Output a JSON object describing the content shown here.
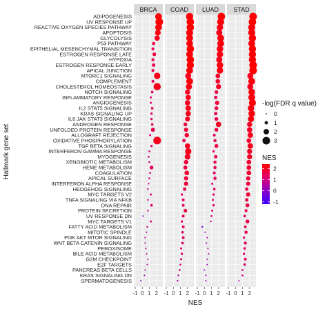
{
  "chart_data": {
    "type": "scatter",
    "xlabel": "NES",
    "ylabel": "Hallmark gene set",
    "x_ticks": [
      "-1",
      "0",
      "1",
      "2"
    ],
    "xlim": [
      -1.2,
      2.9
    ],
    "facets": [
      "BRCA",
      "COAD",
      "LUAD",
      "STAD"
    ],
    "gene_sets": [
      "ADIPOGENESIS",
      "UV RESPONSE UP",
      "REACTIVE OXYGEN SPECIES PATHWAY",
      "APOPTOSIS",
      "GLYCOLYSIS",
      "P53 PATHWAY",
      "EPITHELIAL MESENCHYMAL TRANSITION",
      "ESTROGEN RESPONSE LATE",
      "HYPOXIA",
      "ESTROGEN RESPONSE EARLY",
      "APICAL JUNCTION",
      "MTORC1 SIGNALING",
      "COMPLEMENT",
      "CHOLESTEROL HOMEOSTASIS",
      "NOTCH SIGNALING",
      "INFLAMMATORY RESPONSE",
      "ANGIOGENESIS",
      "IL2 STAT5 SIGNALING",
      "KRAS SIGNALING UP",
      "IL6 JAK STAT3 SIGNALING",
      "ANDROGEN RESPONSE",
      "UNFOLDED PROTEIN RESPONSE",
      "ALLOGRAFT REJECTION",
      "OXIDATIVE PHOSPHORYLATION",
      "TGF BETA SIGNALING",
      "INTERFERON GAMMA RESPONSE",
      "MYOGENESIS",
      "XENOBIOTIC METABOLISM",
      "HEME METABOLISM",
      "COAGULATION",
      "APICAL SURFACE",
      "INTERFERON ALPHA RESPONSE",
      "HEDGEHOG SIGNALING",
      "MYC TARGETS V2",
      "TNFA SIGNALING VIA NFKB",
      "DNA REPAIR",
      "PROTEIN SECRETION",
      "UV RESPONSE DN",
      "MYC TARGETS V1",
      "FATTY ACID METABOLISM",
      "MITOTIC SPINDLE",
      "PI3K AKT MTOR SIGNALING",
      "WNT BETA CATENIN SIGNALING",
      "PEROXISOME",
      "BILE ACID METABOLISM",
      "G2M CHECKPOINT",
      "E2F TARGETS",
      "PANCREAS BETA CELLS",
      "KRAS SIGNALING DN",
      "SPERMATOGENESIS"
    ],
    "nes": {
      "BRCA": [
        2.3,
        2.4,
        2.3,
        2.2,
        2.1,
        1.6,
        1.5,
        1.7,
        1.5,
        1.6,
        1.5,
        2.1,
        1.5,
        2.1,
        1.4,
        1.2,
        1.2,
        1.4,
        1.3,
        1.3,
        1.4,
        1.5,
        1.1,
        2.1,
        1.3,
        1.0,
        0.9,
        1.0,
        1.3,
        1.1,
        1.0,
        0.9,
        0.8,
        1.2,
        0.8,
        1.3,
        0.8,
        0.1,
        1.2,
        0.7,
        0.6,
        0.4,
        0.4,
        0.5,
        0.6,
        0.8,
        0.7,
        0.4,
        0.3,
        -0.2
      ],
      "COAD": [
        2.3,
        2.4,
        2.4,
        2.3,
        2.3,
        2.3,
        2.4,
        2.3,
        2.4,
        2.4,
        2.3,
        2.1,
        2.3,
        2.2,
        2.0,
        2.1,
        2.0,
        2.1,
        2.1,
        2.0,
        1.7,
        1.8,
        1.9,
        1.5,
        2.0,
        2.1,
        2.0,
        1.8,
        1.7,
        1.9,
        1.8,
        1.8,
        1.6,
        1.2,
        1.4,
        1.4,
        1.7,
        1.4,
        1.2,
        1.4,
        1.3,
        1.4,
        1.3,
        1.1,
        1.2,
        1.1,
        1.0,
        0.9,
        0.7,
        0.6
      ],
      "LUAD": [
        2.4,
        2.3,
        2.2,
        2.1,
        2.3,
        2.3,
        2.2,
        2.2,
        2.1,
        2.2,
        2.2,
        1.9,
        1.9,
        2.0,
        1.7,
        1.6,
        1.8,
        1.7,
        1.6,
        1.7,
        2.0,
        1.7,
        1.4,
        1.5,
        1.7,
        1.3,
        1.6,
        1.5,
        1.5,
        1.4,
        1.5,
        1.1,
        1.4,
        1.3,
        1.2,
        1.3,
        1.1,
        1.0,
        0.9,
        -0.3,
        0.1,
        0.4,
        0.3,
        0.5,
        0.6,
        0.4,
        0.4,
        0.0,
        0.2,
        0.2
      ],
      "STAD": [
        2.5,
        2.4,
        2.3,
        2.3,
        2.4,
        2.3,
        2.4,
        2.4,
        2.4,
        2.5,
        2.5,
        2.1,
        2.3,
        2.1,
        2.3,
        2.3,
        2.4,
        2.2,
        2.3,
        2.2,
        2.0,
        2.0,
        2.1,
        1.9,
        2.1,
        2.0,
        2.0,
        1.9,
        1.9,
        1.9,
        1.8,
        1.8,
        1.6,
        1.8,
        1.6,
        1.7,
        1.5,
        1.3,
        1.7,
        1.4,
        1.5,
        1.2,
        1.4,
        1.3,
        1.2,
        1.4,
        1.3,
        1.0,
        1.0,
        0.5
      ]
    },
    "neglog_fdr": {
      "BRCA": [
        2.6,
        3.0,
        2.6,
        2.1,
        1.9,
        0.9,
        0.8,
        1.1,
        0.8,
        1.0,
        0.8,
        2.4,
        0.8,
        2.8,
        0.6,
        0.4,
        0.4,
        0.6,
        0.5,
        0.5,
        0.6,
        1.3,
        0.4,
        3.0,
        0.5,
        0.3,
        0.3,
        0.3,
        1.2,
        0.3,
        0.3,
        0.2,
        0.2,
        0.4,
        0.2,
        0.6,
        0.2,
        0.1,
        0.4,
        0.2,
        0.1,
        0.1,
        0.1,
        0.1,
        0.1,
        0.1,
        0.1,
        0.1,
        0.1,
        0.1
      ],
      "COAD": [
        2.8,
        2.9,
        2.9,
        2.7,
        2.6,
        2.5,
        2.9,
        2.6,
        2.9,
        2.8,
        2.6,
        2.2,
        2.6,
        2.3,
        1.8,
        1.9,
        1.9,
        2.0,
        1.9,
        1.7,
        1.2,
        1.4,
        1.5,
        1.0,
        1.9,
        2.4,
        2.1,
        1.5,
        1.3,
        1.6,
        1.4,
        1.4,
        1.0,
        0.5,
        0.7,
        0.7,
        1.1,
        0.7,
        0.5,
        0.7,
        0.6,
        0.7,
        0.6,
        0.4,
        0.5,
        0.4,
        0.3,
        0.3,
        0.2,
        0.2
      ],
      "LUAD": [
        2.9,
        2.7,
        2.4,
        2.3,
        2.6,
        2.6,
        2.5,
        2.4,
        2.3,
        2.5,
        2.4,
        1.6,
        1.6,
        1.8,
        1.1,
        1.0,
        1.4,
        1.2,
        1.0,
        1.2,
        1.9,
        1.2,
        0.7,
        0.9,
        1.2,
        0.5,
        1.0,
        0.9,
        0.9,
        0.7,
        0.9,
        0.4,
        0.6,
        0.5,
        0.4,
        0.5,
        0.4,
        0.3,
        0.2,
        0.2,
        0.1,
        0.1,
        0.1,
        0.1,
        0.1,
        0.1,
        0.1,
        0.1,
        0.1,
        0.1
      ],
      "STAD": [
        3.0,
        2.9,
        2.7,
        2.7,
        2.8,
        2.6,
        2.8,
        2.8,
        2.8,
        3.0,
        3.0,
        2.2,
        2.6,
        2.2,
        2.5,
        2.6,
        2.7,
        2.4,
        2.5,
        2.3,
        1.8,
        1.9,
        2.0,
        1.6,
        2.0,
        1.8,
        1.8,
        1.6,
        1.6,
        1.6,
        1.4,
        1.4,
        1.0,
        1.4,
        1.0,
        1.2,
        0.8,
        0.6,
        1.2,
        0.7,
        0.9,
        0.5,
        0.8,
        0.6,
        0.5,
        0.7,
        0.6,
        0.3,
        0.3,
        0.1
      ]
    },
    "legend_size": {
      "title": "-log(FDR q value)",
      "entries": [
        "0",
        "1",
        "2",
        "3"
      ],
      "values": [
        0,
        1,
        2,
        3
      ]
    },
    "legend_color": {
      "title": "NES",
      "entries": [
        "2",
        "1",
        "0",
        "-1"
      ],
      "values": [
        2,
        1,
        0,
        -1
      ],
      "low_color": "#3a00ff",
      "high_color": "#ff0000",
      "scale_min": -1.2,
      "scale_max": 2.4
    },
    "colors": {
      "panel_background": "#ebebeb",
      "grid": "#ffffff",
      "strip_background": "#d9d9d9"
    }
  }
}
